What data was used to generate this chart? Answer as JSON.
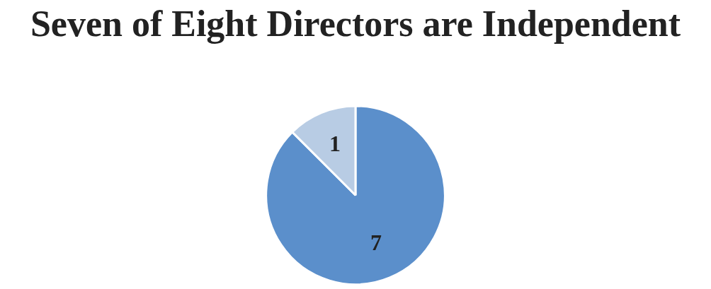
{
  "chart_data": {
    "type": "pie",
    "title": "Seven of Eight Directors are Independent",
    "categories": [
      null,
      null
    ],
    "values": [
      7,
      1
    ],
    "colors": [
      "#5b8fcb",
      "#b8cce4"
    ],
    "data_labels": true,
    "legend": false
  }
}
